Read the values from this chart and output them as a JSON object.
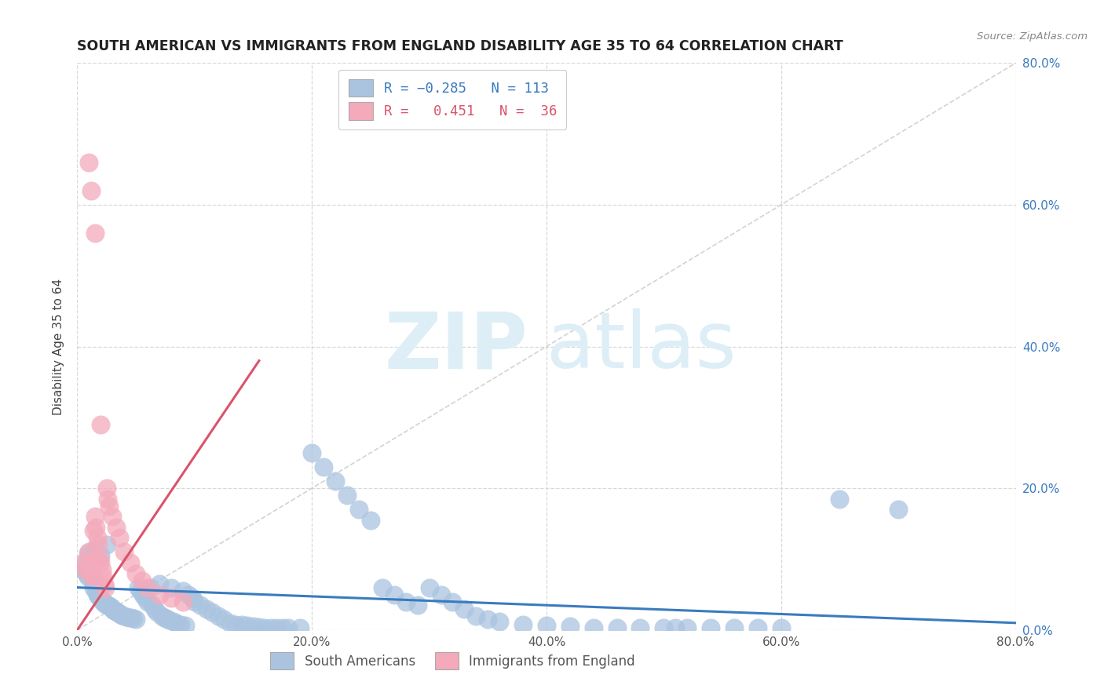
{
  "title": "SOUTH AMERICAN VS IMMIGRANTS FROM ENGLAND DISABILITY AGE 35 TO 64 CORRELATION CHART",
  "source": "Source: ZipAtlas.com",
  "ylabel": "Disability Age 35 to 64",
  "xlim": [
    0.0,
    0.8
  ],
  "ylim": [
    0.0,
    0.8
  ],
  "tick_vals": [
    0.0,
    0.2,
    0.4,
    0.6,
    0.8
  ],
  "blue_R": -0.285,
  "blue_N": 113,
  "pink_R": 0.451,
  "pink_N": 36,
  "blue_color": "#aac4e0",
  "pink_color": "#f4aabb",
  "blue_line_color": "#3a7bbf",
  "pink_line_color": "#d9546a",
  "diagonal_color": "#c8c8c8",
  "legend_label_blue": "South Americans",
  "legend_label_pink": "Immigrants from England",
  "watermark_zip": "ZIP",
  "watermark_atlas": "atlas",
  "background_color": "#ffffff",
  "grid_color": "#d8d8d8",
  "blue_scatter_x": [
    0.005,
    0.007,
    0.008,
    0.009,
    0.01,
    0.011,
    0.012,
    0.013,
    0.014,
    0.015,
    0.016,
    0.017,
    0.018,
    0.019,
    0.02,
    0.021,
    0.022,
    0.023,
    0.024,
    0.025,
    0.026,
    0.027,
    0.028,
    0.029,
    0.03,
    0.031,
    0.032,
    0.033,
    0.034,
    0.035,
    0.036,
    0.037,
    0.038,
    0.04,
    0.042,
    0.044,
    0.046,
    0.048,
    0.05,
    0.052,
    0.054,
    0.056,
    0.058,
    0.06,
    0.062,
    0.064,
    0.066,
    0.068,
    0.07,
    0.072,
    0.074,
    0.076,
    0.078,
    0.08,
    0.082,
    0.084,
    0.086,
    0.088,
    0.09,
    0.092,
    0.095,
    0.098,
    0.1,
    0.105,
    0.11,
    0.115,
    0.12,
    0.125,
    0.13,
    0.135,
    0.14,
    0.145,
    0.15,
    0.155,
    0.16,
    0.165,
    0.17,
    0.175,
    0.18,
    0.19,
    0.2,
    0.21,
    0.22,
    0.23,
    0.24,
    0.25,
    0.26,
    0.27,
    0.28,
    0.29,
    0.3,
    0.31,
    0.32,
    0.33,
    0.34,
    0.35,
    0.36,
    0.38,
    0.4,
    0.42,
    0.44,
    0.46,
    0.48,
    0.5,
    0.51,
    0.52,
    0.54,
    0.56,
    0.58,
    0.6,
    0.65,
    0.7,
    0.009
  ],
  "blue_scatter_y": [
    0.085,
    0.095,
    0.08,
    0.075,
    0.105,
    0.09,
    0.095,
    0.068,
    0.06,
    0.115,
    0.055,
    0.05,
    0.048,
    0.045,
    0.105,
    0.042,
    0.04,
    0.038,
    0.036,
    0.12,
    0.035,
    0.034,
    0.033,
    0.032,
    0.03,
    0.028,
    0.027,
    0.026,
    0.025,
    0.024,
    0.023,
    0.022,
    0.021,
    0.02,
    0.019,
    0.018,
    0.017,
    0.016,
    0.015,
    0.06,
    0.055,
    0.05,
    0.045,
    0.04,
    0.06,
    0.035,
    0.03,
    0.025,
    0.065,
    0.02,
    0.018,
    0.016,
    0.014,
    0.06,
    0.012,
    0.01,
    0.008,
    0.007,
    0.055,
    0.006,
    0.05,
    0.045,
    0.04,
    0.035,
    0.03,
    0.025,
    0.02,
    0.015,
    0.01,
    0.008,
    0.007,
    0.006,
    0.005,
    0.004,
    0.003,
    0.003,
    0.003,
    0.003,
    0.003,
    0.003,
    0.25,
    0.23,
    0.21,
    0.19,
    0.17,
    0.155,
    0.06,
    0.05,
    0.04,
    0.035,
    0.06,
    0.05,
    0.04,
    0.03,
    0.02,
    0.015,
    0.012,
    0.008,
    0.006,
    0.005,
    0.003,
    0.003,
    0.003,
    0.003,
    0.003,
    0.003,
    0.003,
    0.003,
    0.003,
    0.003,
    0.185,
    0.17,
    0.108
  ],
  "pink_scatter_x": [
    0.005,
    0.007,
    0.009,
    0.01,
    0.011,
    0.012,
    0.013,
    0.014,
    0.015,
    0.016,
    0.017,
    0.018,
    0.019,
    0.02,
    0.021,
    0.022,
    0.023,
    0.024,
    0.025,
    0.026,
    0.027,
    0.03,
    0.033,
    0.036,
    0.04,
    0.045,
    0.05,
    0.055,
    0.06,
    0.07,
    0.08,
    0.09,
    0.01,
    0.012,
    0.015,
    0.02
  ],
  "pink_scatter_y": [
    0.095,
    0.085,
    0.09,
    0.11,
    0.095,
    0.08,
    0.075,
    0.14,
    0.16,
    0.145,
    0.13,
    0.12,
    0.1,
    0.095,
    0.085,
    0.075,
    0.065,
    0.06,
    0.2,
    0.185,
    0.175,
    0.16,
    0.145,
    0.13,
    0.11,
    0.095,
    0.08,
    0.07,
    0.06,
    0.05,
    0.045,
    0.04,
    0.66,
    0.62,
    0.56,
    0.29
  ],
  "blue_line_x0": 0.0,
  "blue_line_y0": 0.06,
  "blue_line_x1": 0.8,
  "blue_line_y1": 0.01,
  "pink_line_x0": 0.0,
  "pink_line_y0": 0.0,
  "pink_line_x1": 0.155,
  "pink_line_y1": 0.38
}
